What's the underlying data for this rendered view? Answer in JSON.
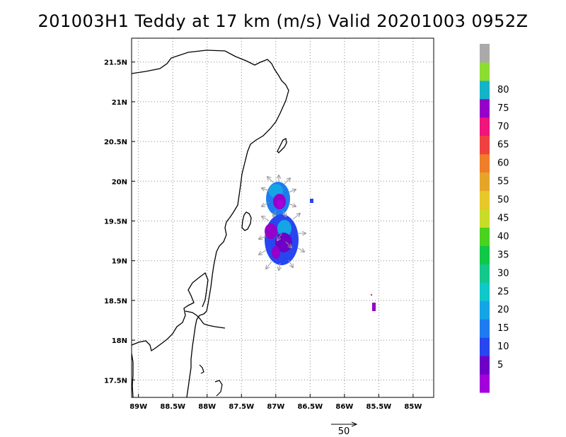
{
  "title": "201003H1 Teddy at 17 km (m/s) Valid 20201003 0952Z",
  "map": {
    "lon_ticks": [
      "89W",
      "88.5W",
      "88W",
      "87.5W",
      "87W",
      "86.5W",
      "86W",
      "85.5W",
      "85W"
    ],
    "lat_ticks": [
      "17.5N",
      "18N",
      "18.5N",
      "19N",
      "19.5N",
      "20N",
      "20.5N",
      "21N",
      "21.5N"
    ],
    "lon_values": [
      -89,
      -88.5,
      -88,
      -87.5,
      -87,
      -86.5,
      -86,
      -85.5,
      -85
    ],
    "lat_values": [
      17.5,
      18,
      18.5,
      19,
      19.5,
      20,
      20.5,
      21,
      21.5
    ],
    "lon_range": [
      -89.1,
      -84.7
    ],
    "lat_range": [
      17.28,
      21.8
    ],
    "grid": "dotted"
  },
  "colorbar": {
    "labels": [
      "5",
      "10",
      "15",
      "20",
      "25",
      "30",
      "35",
      "40",
      "45",
      "50",
      "55",
      "60",
      "65",
      "70",
      "75",
      "80"
    ],
    "colors": [
      "#a300dc",
      "#6e00c8",
      "#2846f0",
      "#1e7cf0",
      "#14a5e6",
      "#0fc8c8",
      "#14c88c",
      "#0fc846",
      "#4ad21e",
      "#c8dc28",
      "#e6c828",
      "#e6a528",
      "#f07d28",
      "#f04141",
      "#f0147d",
      "#9600c8",
      "#14b4c8",
      "#8cdc32",
      "#aaaaaa"
    ]
  },
  "reference_vector": {
    "label": "50"
  }
}
